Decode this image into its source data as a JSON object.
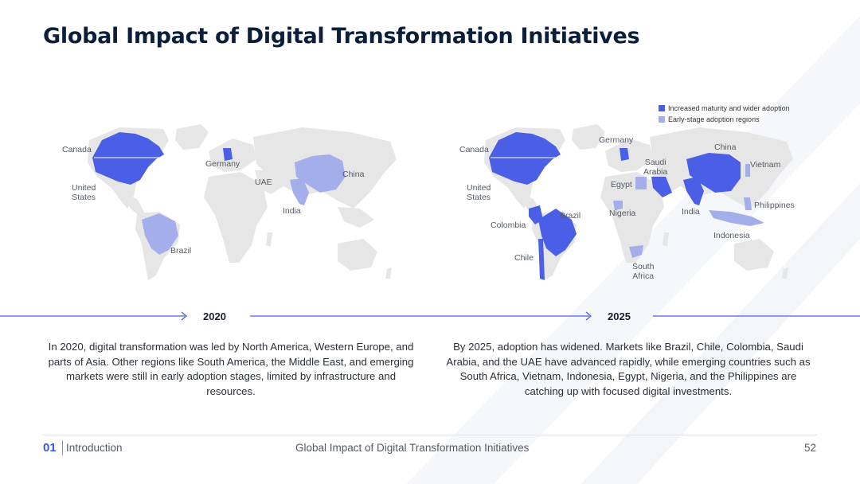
{
  "title": "Global Impact of Digital Transformation Initiatives",
  "colors": {
    "mature": "#4a5fe6",
    "early": "#a3aeea",
    "land": "#e6e6e6",
    "title": "#0b1f3a",
    "accent": "#3a56e6"
  },
  "legend": {
    "mature": "Increased maturity and wider adoption",
    "early": "Early-stage adoption regions"
  },
  "map2020": {
    "labels": {
      "canada": "Canada",
      "us": "United\nStates",
      "germany": "Germany",
      "uae": "UAE",
      "china": "China",
      "india": "India",
      "brazil": "Brazil"
    }
  },
  "map2025": {
    "labels": {
      "canada": "Canada",
      "us": "United\nStates",
      "germany": "Germany",
      "china": "China",
      "saudi": "Saudi\nArabia",
      "vietnam": "Vietnam",
      "egypt": "Egypt",
      "brazil": "Brazil",
      "nigeria": "Nigeria",
      "india": "India",
      "philippines": "Philippines",
      "colombia": "Colombia",
      "indonesia": "Indonesia",
      "chile": "Chile",
      "south_africa": "South\nAfrica"
    }
  },
  "timeline": {
    "year1": "2020",
    "year2": "2025"
  },
  "desc2020": "In 2020, digital transformation was led by North America, Western Europe, and parts of Asia. Other regions like South America, the Middle East, and emerging markets were still in early adoption stages, limited by infrastructure and resources.",
  "desc2025": "By 2025, adoption has widened. Markets like Brazil, Chile, Colombia, Saudi Arabia, and the UAE have advanced rapidly, while emerging countries such as South Africa, Vietnam, Indonesia, Egypt, Nigeria, and the Philippines are catching up with focused digital investments.",
  "footer": {
    "number": "01",
    "section": "Introduction",
    "center": "Global Impact of Digital Transformation Initiatives",
    "page": "52"
  }
}
